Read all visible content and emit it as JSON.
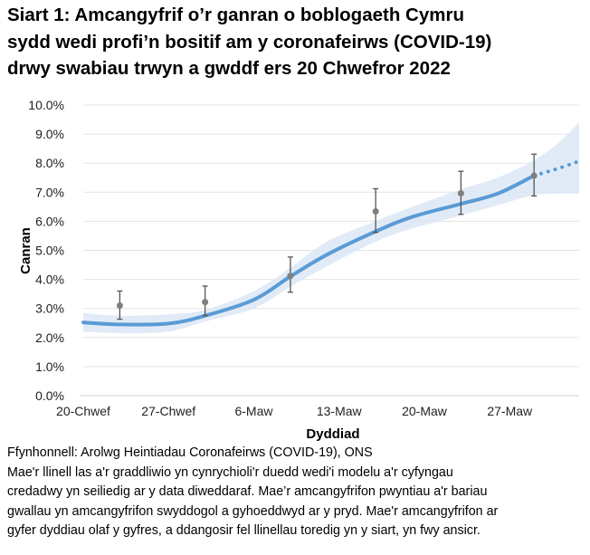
{
  "chart_data": {
    "type": "line",
    "title": "Siart 1: Amcangyfrif o’r ganran o boblogaeth Cymru sydd wedi profi’n bositif am y coronafeirws (COVID-19) drwy swabiau trwyn a gwddf ers 20 Chwefror 2022",
    "title_lines": [
      "Siart 1: Amcangyfrif o’r ganran o boblogaeth Cymru",
      "sydd wedi profi’n bositif am y coronafeirws (COVID-19)",
      "drwy swabiau trwyn a gwddf ers 20 Chwefror 2022"
    ],
    "xlabel": "Dyddiad",
    "ylabel": "Canran",
    "ylim": [
      0,
      10
    ],
    "yticks": [
      "0.0%",
      "1.0%",
      "2.0%",
      "3.0%",
      "4.0%",
      "5.0%",
      "6.0%",
      "7.0%",
      "8.0%",
      "9.0%",
      "10.0%"
    ],
    "xticks": [
      {
        "label": "20-Chwef",
        "day": 0
      },
      {
        "label": "27-Chwef",
        "day": 7
      },
      {
        "label": "6-Maw",
        "day": 14
      },
      {
        "label": "13-Maw",
        "day": 21
      },
      {
        "label": "20-Maw",
        "day": 28
      },
      {
        "label": "27-Maw",
        "day": 35
      }
    ],
    "xlim_days": [
      0,
      40.7
    ],
    "grid": true,
    "trend": {
      "days": [
        0,
        3,
        7,
        10,
        14,
        17,
        20,
        24,
        27,
        31,
        34,
        37
      ],
      "values": [
        2.52,
        2.45,
        2.48,
        2.75,
        3.3,
        4.1,
        4.85,
        5.65,
        6.15,
        6.6,
        6.95,
        7.57
      ],
      "dotted_days": [
        37,
        39,
        40.7
      ],
      "dotted_values": [
        7.57,
        7.82,
        8.07
      ],
      "color": "#5b9bd5"
    },
    "credible_interval": {
      "days": [
        0,
        3,
        7,
        10,
        14,
        17,
        20,
        24,
        27,
        31,
        34,
        37,
        39,
        40.7
      ],
      "upper": [
        2.85,
        2.75,
        2.8,
        2.95,
        3.6,
        4.4,
        5.3,
        6.0,
        6.5,
        7.1,
        7.5,
        8.1,
        8.7,
        9.4
      ],
      "lower": [
        2.2,
        2.15,
        2.2,
        2.55,
        3.0,
        3.75,
        4.45,
        5.3,
        5.75,
        6.2,
        6.55,
        6.9,
        6.95,
        6.95
      ],
      "color": "#dce8f6"
    },
    "estimates": {
      "days": [
        3,
        10,
        17,
        24,
        31,
        37
      ],
      "values": [
        3.1,
        3.22,
        4.12,
        6.34,
        6.96,
        7.57
      ],
      "lower": [
        2.63,
        2.75,
        3.56,
        5.62,
        6.24,
        6.87
      ],
      "upper": [
        3.6,
        3.77,
        4.77,
        7.12,
        7.72,
        8.31
      ],
      "color": "#7f7f7f"
    }
  },
  "notes": [
    "Ffynhonnell: Arolwg Heintiadau Coronafeirws (COVID-19), ONS",
    "Mae'r llinell las a'r graddliwio yn cynrychioli'r duedd wedi'i modelu a'r cyfyngau",
    "credadwy yn seiliedig ar y data diweddaraf. Mae’r amcangyfrifon pwyntiau a'r bariau",
    "gwallau yn amcangyfrifon swyddogol a gyhoeddwyd ar y pryd. Mae'r amcangyfrifon ar",
    "gyfer dyddiau olaf y gyfres, a ddangosir fel llinellau toredig yn y siart, yn fwy ansicr."
  ]
}
